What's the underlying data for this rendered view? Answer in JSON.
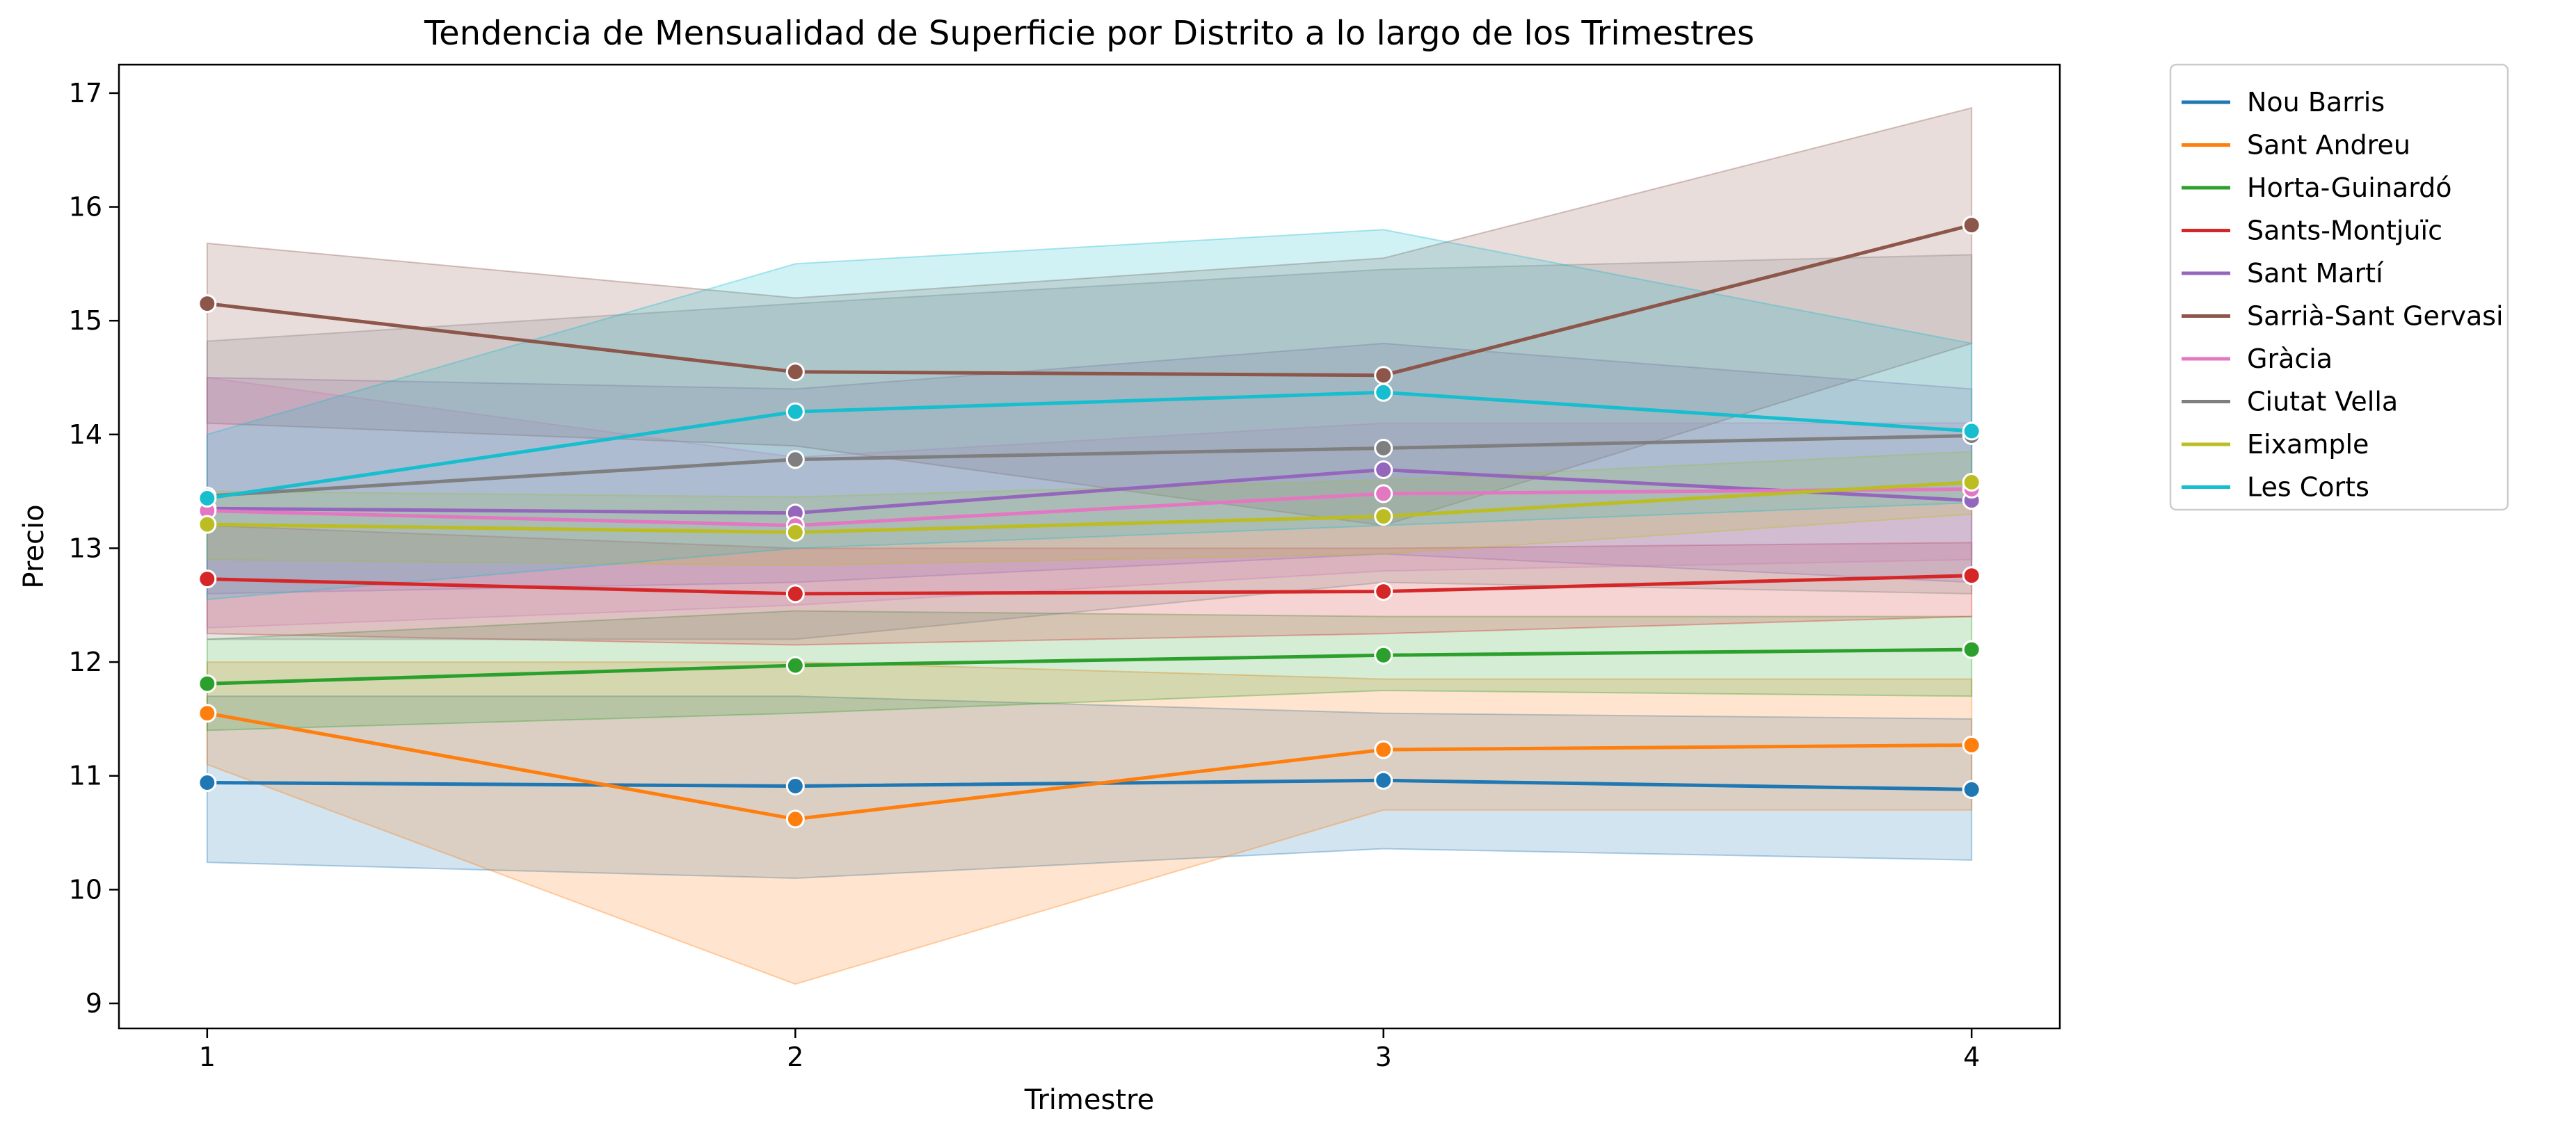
{
  "chart_data": {
    "type": "line",
    "title": "Tendencia de Mensualidad de Superficie por Distrito a lo largo de los Trimestres",
    "xlabel": "Trimestre",
    "ylabel": "Precio",
    "x": [
      1,
      2,
      3,
      4
    ],
    "x_ticks": [
      "1",
      "2",
      "3",
      "4"
    ],
    "y_ticks": [
      "9",
      "10",
      "11",
      "12",
      "13",
      "14",
      "15",
      "16",
      "17"
    ],
    "xlim": [
      0.85,
      4.15
    ],
    "ylim": [
      8.78,
      17.25
    ],
    "grid": false,
    "legend_position": "outside-top-right",
    "series": [
      {
        "name": "Nou Barris",
        "color": "#1f77b4",
        "values": [
          10.94,
          10.91,
          10.96,
          10.88
        ],
        "ci_low": [
          10.24,
          10.1,
          10.36,
          10.26
        ],
        "ci_high": [
          11.7,
          11.7,
          11.55,
          11.5
        ]
      },
      {
        "name": "Sant Andreu",
        "color": "#ff7f0e",
        "values": [
          11.55,
          10.62,
          11.23,
          11.27
        ],
        "ci_low": [
          11.1,
          9.17,
          10.7,
          10.7
        ],
        "ci_high": [
          12.0,
          12.0,
          11.85,
          11.85
        ]
      },
      {
        "name": "Horta-Guinardó",
        "color": "#2ca02c",
        "values": [
          11.81,
          11.97,
          12.06,
          12.11
        ],
        "ci_low": [
          11.4,
          11.55,
          11.75,
          11.7
        ],
        "ci_high": [
          12.2,
          12.45,
          12.4,
          12.4
        ]
      },
      {
        "name": "Sants-Montjuïc",
        "color": "#d62728",
        "values": [
          12.73,
          12.6,
          12.62,
          12.76
        ],
        "ci_low": [
          12.25,
          12.15,
          12.25,
          12.4
        ],
        "ci_high": [
          13.2,
          13.0,
          13.0,
          13.05
        ]
      },
      {
        "name": "Sant Martí",
        "color": "#9467bd",
        "values": [
          13.35,
          13.31,
          13.69,
          13.42
        ],
        "ci_low": [
          12.6,
          12.7,
          12.95,
          12.7
        ],
        "ci_high": [
          14.5,
          14.4,
          14.8,
          14.4
        ]
      },
      {
        "name": "Sarrià-Sant Gervasi",
        "color": "#8c564b",
        "values": [
          15.15,
          14.55,
          14.52,
          15.84
        ],
        "ci_low": [
          14.1,
          13.9,
          13.2,
          14.8
        ],
        "ci_high": [
          15.68,
          15.2,
          15.55,
          16.87
        ]
      },
      {
        "name": "Gràcia",
        "color": "#e377c2",
        "values": [
          13.33,
          13.2,
          13.48,
          13.52
        ],
        "ci_low": [
          12.3,
          12.5,
          12.8,
          12.9
        ],
        "ci_high": [
          14.5,
          13.8,
          14.1,
          14.1
        ]
      },
      {
        "name": "Ciutat Vella",
        "color": "#7f7f7f",
        "values": [
          13.46,
          13.78,
          13.88,
          13.99
        ],
        "ci_low": [
          12.2,
          12.2,
          12.7,
          12.6
        ],
        "ci_high": [
          14.82,
          15.15,
          15.45,
          15.58
        ]
      },
      {
        "name": "Eixample",
        "color": "#bcbd22",
        "values": [
          13.21,
          13.14,
          13.28,
          13.58
        ],
        "ci_low": [
          12.9,
          12.85,
          12.95,
          13.3
        ],
        "ci_high": [
          13.5,
          13.45,
          13.6,
          13.85
        ]
      },
      {
        "name": "Les Corts",
        "color": "#17becf",
        "values": [
          13.44,
          14.2,
          14.37,
          14.03
        ],
        "ci_low": [
          12.55,
          13.0,
          13.2,
          13.4
        ],
        "ci_high": [
          14.0,
          15.5,
          15.8,
          14.8
        ]
      }
    ]
  }
}
